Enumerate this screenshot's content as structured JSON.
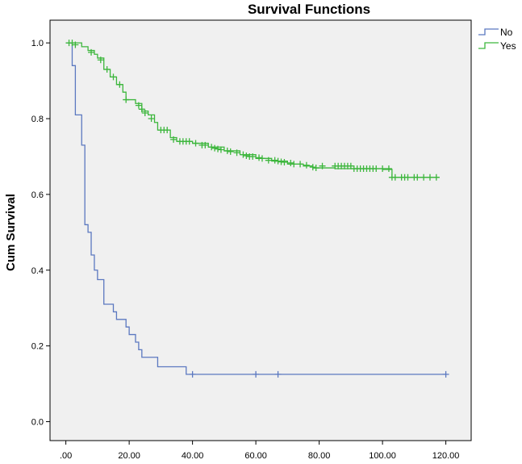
{
  "chart_data": {
    "type": "line",
    "title": "Survival Functions",
    "xlabel": "",
    "ylabel": "Cum Survival",
    "xlim": [
      -5,
      128
    ],
    "ylim": [
      -0.05,
      1.06
    ],
    "xticks": [
      ".00",
      "20.00",
      "40.00",
      "60.00",
      "80.00",
      "100.00",
      "120.00"
    ],
    "xtick_values": [
      0,
      20,
      40,
      60,
      80,
      100,
      120
    ],
    "yticks": [
      "0.0",
      "0.2",
      "0.4",
      "0.6",
      "0.8",
      "1.0"
    ],
    "ytick_values": [
      0,
      0.2,
      0.4,
      0.6,
      0.8,
      1.0
    ],
    "grid": false,
    "legend_position": "top-right, outside plot",
    "background_color": "#f0f0f0",
    "series": [
      {
        "name": "No",
        "color": "#5b78c0",
        "steps": [
          [
            0,
            1.0
          ],
          [
            2,
            0.94
          ],
          [
            3,
            0.81
          ],
          [
            5,
            0.73
          ],
          [
            6,
            0.52
          ],
          [
            7,
            0.5
          ],
          [
            8,
            0.44
          ],
          [
            9,
            0.4
          ],
          [
            10,
            0.375
          ],
          [
            12,
            0.31
          ],
          [
            15,
            0.29
          ],
          [
            16,
            0.27
          ],
          [
            19,
            0.25
          ],
          [
            20,
            0.23
          ],
          [
            22,
            0.21
          ],
          [
            23,
            0.19
          ],
          [
            24,
            0.17
          ],
          [
            29,
            0.145
          ],
          [
            38,
            0.125
          ],
          [
            120,
            0.125
          ]
        ],
        "censored": [
          [
            40,
            0.125
          ],
          [
            60,
            0.125
          ],
          [
            67,
            0.125
          ],
          [
            120,
            0.125
          ]
        ]
      },
      {
        "name": "Yes",
        "color": "#3cb63c",
        "steps": [
          [
            0,
            1.0
          ],
          [
            5,
            0.99
          ],
          [
            7,
            0.98
          ],
          [
            9,
            0.97
          ],
          [
            10,
            0.96
          ],
          [
            12,
            0.93
          ],
          [
            14,
            0.91
          ],
          [
            16,
            0.89
          ],
          [
            18,
            0.87
          ],
          [
            19,
            0.85
          ],
          [
            22,
            0.84
          ],
          [
            24,
            0.82
          ],
          [
            26,
            0.81
          ],
          [
            28,
            0.79
          ],
          [
            29,
            0.77
          ],
          [
            33,
            0.75
          ],
          [
            35,
            0.74
          ],
          [
            40,
            0.735
          ],
          [
            45,
            0.725
          ],
          [
            50,
            0.715
          ],
          [
            55,
            0.705
          ],
          [
            60,
            0.695
          ],
          [
            65,
            0.688
          ],
          [
            70,
            0.68
          ],
          [
            75,
            0.675
          ],
          [
            78,
            0.67
          ],
          [
            85,
            0.668
          ],
          [
            100,
            0.666
          ],
          [
            103,
            0.645
          ],
          [
            118,
            0.645
          ]
        ],
        "censored": [
          [
            1,
            1.0
          ],
          [
            2,
            1.0
          ],
          [
            3,
            0.995
          ],
          [
            8,
            0.975
          ],
          [
            11,
            0.955
          ],
          [
            13,
            0.93
          ],
          [
            15,
            0.91
          ],
          [
            17,
            0.89
          ],
          [
            19,
            0.85
          ],
          [
            23,
            0.835
          ],
          [
            24,
            0.825
          ],
          [
            25,
            0.815
          ],
          [
            27,
            0.8
          ],
          [
            30,
            0.77
          ],
          [
            31,
            0.77
          ],
          [
            32,
            0.77
          ],
          [
            34,
            0.745
          ],
          [
            36,
            0.74
          ],
          [
            37,
            0.74
          ],
          [
            38,
            0.74
          ],
          [
            39,
            0.74
          ],
          [
            41,
            0.735
          ],
          [
            43,
            0.73
          ],
          [
            44,
            0.73
          ],
          [
            46,
            0.725
          ],
          [
            47,
            0.722
          ],
          [
            48,
            0.72
          ],
          [
            49,
            0.718
          ],
          [
            51,
            0.715
          ],
          [
            52,
            0.713
          ],
          [
            54,
            0.71
          ],
          [
            56,
            0.705
          ],
          [
            57,
            0.702
          ],
          [
            58,
            0.7
          ],
          [
            59,
            0.7
          ],
          [
            61,
            0.697
          ],
          [
            62,
            0.695
          ],
          [
            64,
            0.69
          ],
          [
            66,
            0.69
          ],
          [
            67,
            0.688
          ],
          [
            68,
            0.686
          ],
          [
            69,
            0.685
          ],
          [
            71,
            0.683
          ],
          [
            72,
            0.68
          ],
          [
            74,
            0.68
          ],
          [
            76,
            0.677
          ],
          [
            78,
            0.672
          ],
          [
            79,
            0.67
          ],
          [
            81,
            0.675
          ],
          [
            85,
            0.675
          ],
          [
            86,
            0.675
          ],
          [
            87,
            0.675
          ],
          [
            88,
            0.675
          ],
          [
            89,
            0.675
          ],
          [
            90,
            0.675
          ],
          [
            91,
            0.668
          ],
          [
            92,
            0.668
          ],
          [
            93,
            0.668
          ],
          [
            94,
            0.668
          ],
          [
            95,
            0.668
          ],
          [
            96,
            0.668
          ],
          [
            97,
            0.668
          ],
          [
            98,
            0.668
          ],
          [
            100,
            0.668
          ],
          [
            102,
            0.668
          ],
          [
            103,
            0.645
          ],
          [
            104,
            0.645
          ],
          [
            106,
            0.645
          ],
          [
            107,
            0.645
          ],
          [
            108,
            0.645
          ],
          [
            110,
            0.645
          ],
          [
            111,
            0.645
          ],
          [
            113,
            0.645
          ],
          [
            115,
            0.645
          ],
          [
            117,
            0.645
          ]
        ]
      }
    ]
  }
}
